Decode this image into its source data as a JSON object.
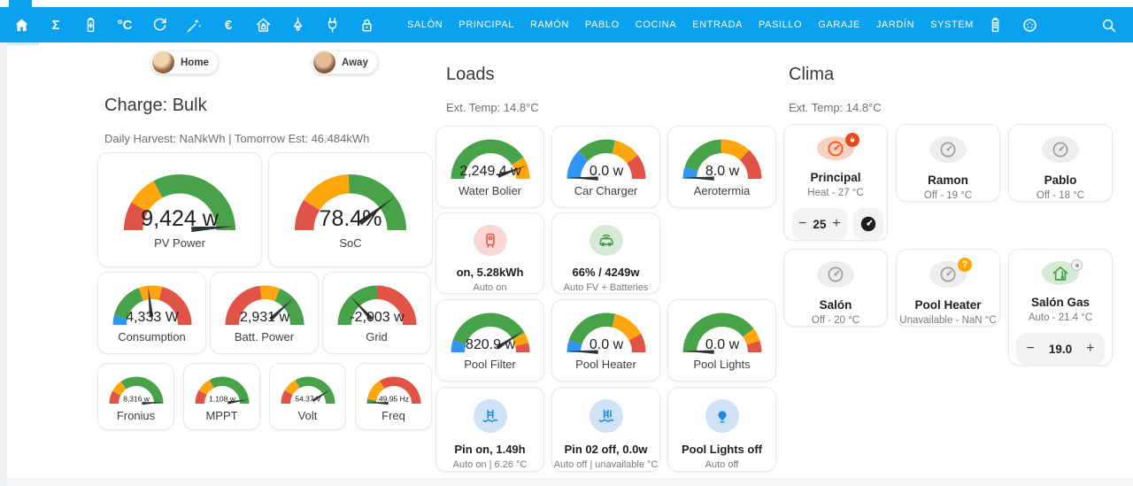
{
  "colors": {
    "bar_blue": "#0aa2ef",
    "gauge_green": "#48a24a",
    "gauge_orange": "#ffa60e",
    "gauge_red": "#e25347",
    "gauge_blue": "#2f96f3",
    "needle": "#2e3335",
    "value_text": "#212121"
  },
  "topbar": {
    "icon_tabs": [
      {
        "icon": "home",
        "active": true
      },
      {
        "icon": "sigma",
        "glyph": "Σ"
      },
      {
        "icon": "battery-plus"
      },
      {
        "icon": "temperature",
        "glyph": "°C"
      },
      {
        "icon": "refresh"
      },
      {
        "icon": "magic-wand"
      },
      {
        "icon": "euro",
        "glyph": "€"
      },
      {
        "icon": "home-lock"
      },
      {
        "icon": "ceiling-lamp"
      },
      {
        "icon": "power-plug"
      },
      {
        "icon": "lock"
      }
    ],
    "text_tabs": [
      "SALÓN",
      "PRINCIPAL",
      "RAMÓN",
      "PABLO",
      "COCINA",
      "ENTRADA",
      "PASILLO",
      "GARAJE",
      "JARDÍN",
      "SYSTEM"
    ],
    "right_icon_tabs": [
      {
        "icon": "battery"
      },
      {
        "icon": "ev-plug"
      }
    ]
  },
  "presence": {
    "home": {
      "label": "Home"
    },
    "away": {
      "label": "Away"
    }
  },
  "energy": {
    "title": "Charge: Bulk",
    "subtitle": "Daily Harvest: NaNkWh | Tomorrow Est: 46.484kWh",
    "gauges_row1": [
      {
        "label": "PV Power",
        "value": "9,424 w",
        "needle": 176,
        "segments": [
          [
            "red",
            0,
            30
          ],
          [
            "orange",
            30,
            62
          ],
          [
            "green",
            62,
            180
          ]
        ]
      },
      {
        "label": "SoC",
        "value": "78.4%",
        "needle": 143,
        "segments": [
          [
            "red",
            0,
            33
          ],
          [
            "orange",
            33,
            88
          ],
          [
            "green",
            88,
            180
          ]
        ]
      }
    ],
    "gauges_row2": [
      {
        "label": "Consumption",
        "value": "4,333 W",
        "needle": 84,
        "segments": [
          [
            "blue",
            0,
            14
          ],
          [
            "green",
            14,
            70
          ],
          [
            "orange",
            70,
            105
          ],
          [
            "red",
            105,
            180
          ]
        ]
      },
      {
        "label": "Batt. Power",
        "value": "2,931 w",
        "needle": 137,
        "segments": [
          [
            "red",
            0,
            83
          ],
          [
            "orange",
            83,
            113
          ],
          [
            "green",
            113,
            180
          ]
        ]
      },
      {
        "label": "Grid",
        "value": "-2,003 w",
        "needle": 47,
        "segments": [
          [
            "green",
            0,
            90
          ],
          [
            "red",
            90,
            180
          ]
        ]
      }
    ],
    "gauges_row3": [
      {
        "label": "Fronius",
        "value": "8,316 w",
        "needle": 177,
        "segments": [
          [
            "red",
            0,
            28
          ],
          [
            "orange",
            28,
            55
          ],
          [
            "green",
            55,
            180
          ]
        ]
      },
      {
        "label": "MPPT",
        "value": "1,108 w",
        "needle": 171,
        "segments": [
          [
            "red",
            0,
            30
          ],
          [
            "orange",
            30,
            62
          ],
          [
            "green",
            62,
            180
          ]
        ]
      },
      {
        "label": "Volt",
        "value": "54.37 V",
        "needle": 148,
        "segments": [
          [
            "red",
            0,
            30
          ],
          [
            "orange",
            30,
            62
          ],
          [
            "green",
            62,
            180
          ]
        ]
      },
      {
        "label": "Freq",
        "value": "49.95 Hz",
        "needle": 3,
        "segments": [
          [
            "green",
            0,
            10
          ],
          [
            "orange",
            10,
            58
          ],
          [
            "red",
            58,
            180
          ]
        ]
      }
    ]
  },
  "loads": {
    "title": "Loads",
    "subtitle": "Ext. Temp: 14.8°C",
    "gauges_row1": [
      {
        "label": "Water Bolier",
        "value": "2,249.4 w",
        "needle": 160,
        "segments": [
          [
            "green",
            0,
            147
          ],
          [
            "orange",
            147,
            180
          ]
        ]
      },
      {
        "label": "Car Charger",
        "value": "0.0 w",
        "needle": 2,
        "segments": [
          [
            "blue",
            0,
            45
          ],
          [
            "green",
            45,
            103
          ],
          [
            "orange",
            103,
            143
          ],
          [
            "red",
            143,
            180
          ]
        ]
      },
      {
        "label": "Aerotermia",
        "value": "8.0 w",
        "needle": 2,
        "segments": [
          [
            "blue",
            0,
            18
          ],
          [
            "green",
            18,
            88
          ],
          [
            "orange",
            88,
            133
          ],
          [
            "red",
            133,
            180
          ]
        ]
      }
    ],
    "sensors_row2": [
      {
        "icon": "water-heater",
        "tint": "red",
        "title": "on, 5.28kWh",
        "subtitle": "Auto on"
      },
      {
        "icon": "ev-car",
        "tint": "green",
        "title": "66% / 4249w",
        "subtitle": "Auto FV + Batteries"
      }
    ],
    "gauges_row3": [
      {
        "label": "Pool Filter",
        "value": "820.9 w",
        "needle": 147,
        "segments": [
          [
            "blue",
            0,
            18
          ],
          [
            "green",
            18,
            150
          ],
          [
            "orange",
            150,
            166
          ],
          [
            "red",
            166,
            180
          ]
        ]
      },
      {
        "label": "Pool Heater",
        "value": "0.0 w",
        "needle": 2,
        "segments": [
          [
            "blue",
            0,
            18
          ],
          [
            "green",
            18,
            103
          ],
          [
            "orange",
            103,
            152
          ],
          [
            "red",
            152,
            180
          ]
        ]
      },
      {
        "label": "Pool Lights",
        "value": "0.0 w",
        "needle": 2,
        "segments": [
          [
            "green",
            0,
            143
          ],
          [
            "orange",
            143,
            163
          ],
          [
            "red",
            163,
            180
          ]
        ]
      }
    ],
    "sensors_row4": [
      {
        "icon": "pool-ladder",
        "tint": "blue",
        "title": "Pin on, 1.49h",
        "subtitle": "Auto on | 6.26 °C"
      },
      {
        "icon": "pool-thermometer",
        "tint": "blue",
        "title": "Pin 02 off, 0.0w",
        "subtitle": "Auto off | unavailable °C"
      },
      {
        "icon": "lightbulb",
        "tint": "blue",
        "title": "Pool Lights off",
        "subtitle": "Auto off"
      }
    ]
  },
  "clima": {
    "title": "Clima",
    "subtitle": "Ext. Temp: 14.8°C",
    "cards": [
      {
        "name": "Principal",
        "status": "Heat - 27 °C",
        "icon": "thermostat",
        "state": "heat",
        "badge": "fire",
        "stepper": {
          "minus": "−",
          "value": "25",
          "plus": "+"
        },
        "dial_button": true
      },
      {
        "name": "Ramon",
        "status": "Off - 19 °C",
        "icon": "thermostat",
        "state": "off"
      },
      {
        "name": "Pablo",
        "status": "Off - 18 °C",
        "icon": "thermostat",
        "state": "off"
      },
      {
        "name": "Salón",
        "status": "Off - 20 °C",
        "icon": "thermostat",
        "state": "off"
      },
      {
        "name": "Pool Heater",
        "status": "Unavailable - NaN °C",
        "icon": "thermostat",
        "state": "off",
        "badge": "question",
        "badge_text": "?"
      },
      {
        "name": "Salón Gas",
        "status": "Auto - 21.4 °C",
        "icon": "home-thermometer",
        "state": "auto",
        "badge": "dial",
        "stepper": {
          "minus": "−",
          "value": "19.0",
          "plus": "+"
        }
      }
    ]
  }
}
